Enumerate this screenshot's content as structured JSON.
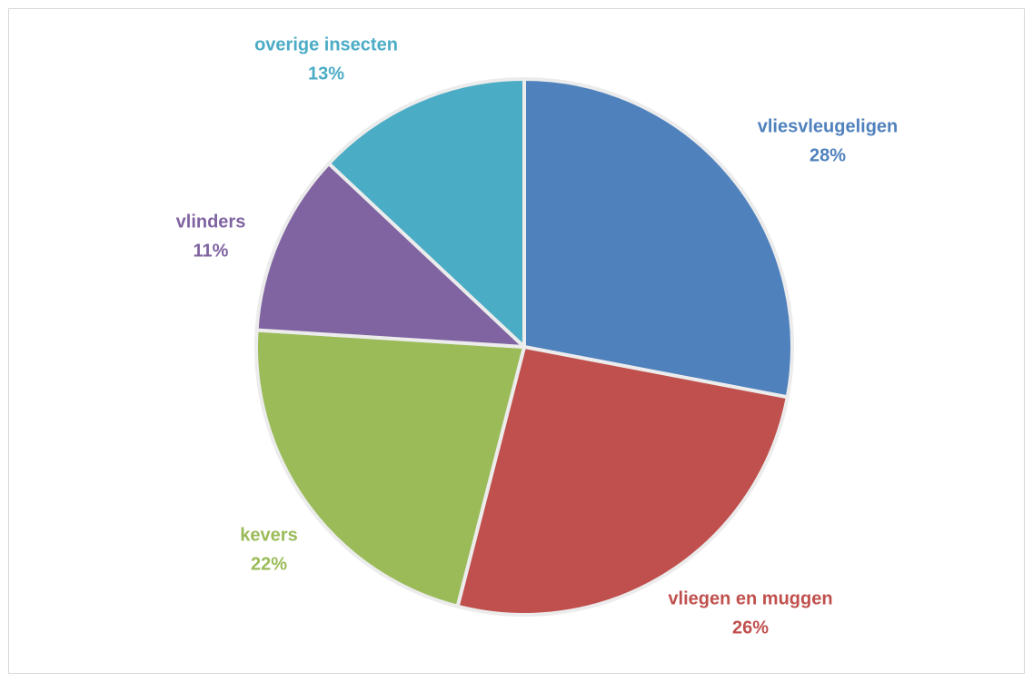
{
  "chart_data": {
    "type": "pie",
    "categories": [
      "vliesvleugeligen",
      "vliegen en muggen",
      "kevers",
      "vlinders",
      "overige insecten"
    ],
    "values": [
      28,
      26,
      22,
      11,
      13
    ],
    "value_labels": [
      "28%",
      "26%",
      "22%",
      "11%",
      "13%"
    ],
    "colors": [
      "#4f81bd",
      "#c0504d",
      "#9bbb59",
      "#8064a2",
      "#4bacc6"
    ]
  }
}
